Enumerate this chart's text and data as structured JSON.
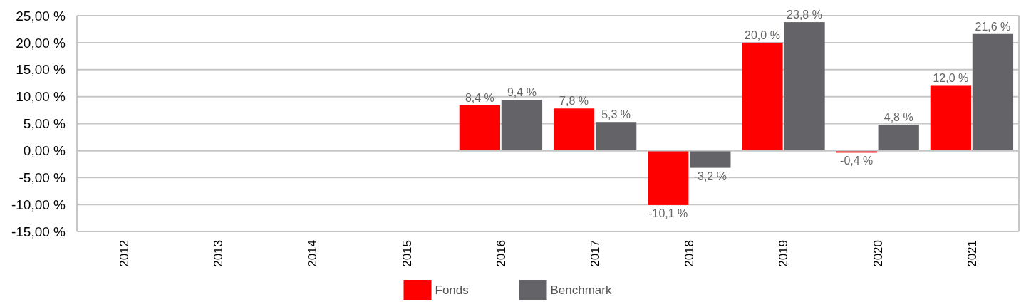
{
  "chart_data": {
    "type": "bar",
    "categories": [
      "2012",
      "2013",
      "2014",
      "2015",
      "2016",
      "2017",
      "2018",
      "2019",
      "2020",
      "2021"
    ],
    "series": [
      {
        "name": "Fonds",
        "color": "#ff0000",
        "values": [
          null,
          null,
          null,
          null,
          8.4,
          7.8,
          -10.1,
          20.0,
          -0.4,
          12.0
        ],
        "value_labels": [
          null,
          null,
          null,
          null,
          "8,4 %",
          "7,8 %",
          "-10,1 %",
          "20,0 %",
          "-0,4 %",
          "12,0 %"
        ]
      },
      {
        "name": "Benchmark",
        "color": "#646367",
        "values": [
          null,
          null,
          null,
          null,
          9.4,
          5.3,
          -3.2,
          23.8,
          4.8,
          21.6
        ],
        "value_labels": [
          null,
          null,
          null,
          null,
          "9,4 %",
          "5,3 %",
          "-3,2 %",
          "23,8 %",
          "4,8 %",
          "21,6 %"
        ]
      }
    ],
    "ylim": [
      -15,
      25
    ],
    "yticks": [
      {
        "value": -15,
        "label": "-15,00 %"
      },
      {
        "value": -10,
        "label": "-10,00 %"
      },
      {
        "value": -5,
        "label": "-5,00 %"
      },
      {
        "value": 0,
        "label": "0,00 %"
      },
      {
        "value": 5,
        "label": "5,00 %"
      },
      {
        "value": 10,
        "label": "10,00 %"
      },
      {
        "value": 15,
        "label": "15,00 %"
      },
      {
        "value": 20,
        "label": "20,00 %"
      },
      {
        "value": 25,
        "label": "25,00 %"
      }
    ],
    "grid": "y",
    "legend": "bottom"
  }
}
